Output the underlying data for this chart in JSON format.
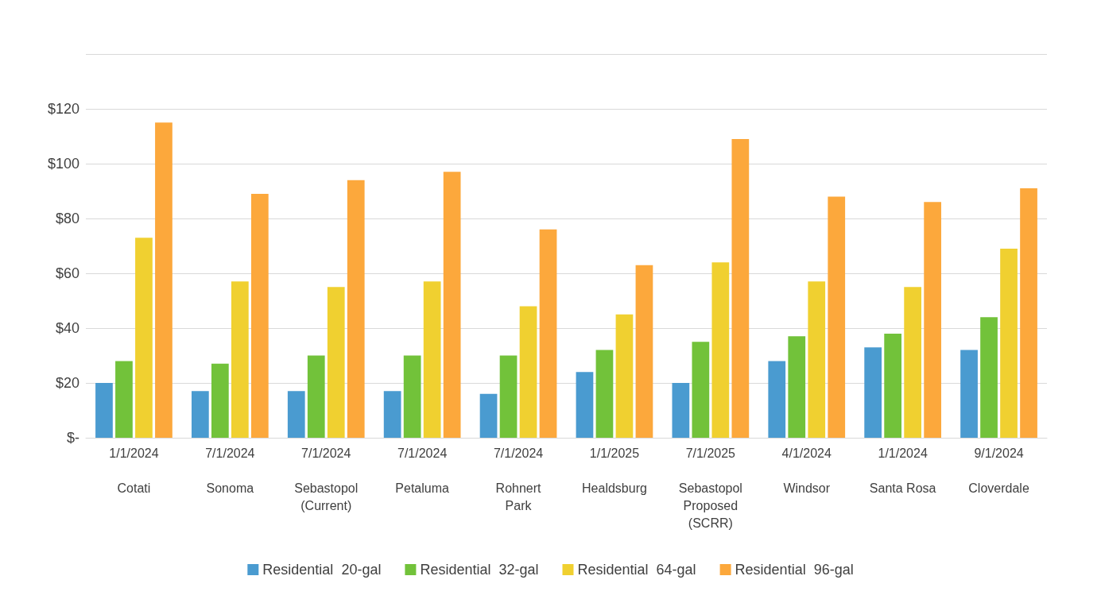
{
  "chart_data": {
    "type": "bar",
    "categories": [
      "1/1/2024\n\nCotati",
      "7/1/2024\n\nSonoma",
      "7/1/2024\n\nSebastopol\n(Current)",
      "7/1/2024\n\nPetaluma",
      "7/1/2024\n\nRohnert\nPark",
      "1/1/2025\n\nHealdsburg",
      "7/1/2025\n\nSebastopol\nProposed\n(SCRR)",
      "4/1/2024\n\nWindsor",
      "1/1/2024\n\nSanta Rosa",
      "9/1/2024\n\nCloverdale"
    ],
    "series": [
      {
        "name": "Residential  20-gal",
        "color": "#4a9bd0",
        "values": [
          20,
          17,
          17,
          17,
          16,
          24,
          20,
          28,
          33,
          32
        ]
      },
      {
        "name": "Residential  32-gal",
        "color": "#72c23a",
        "values": [
          28,
          27,
          30,
          30,
          30,
          32,
          35,
          37,
          38,
          44
        ]
      },
      {
        "name": "Residential  64-gal",
        "color": "#f0d030",
        "values": [
          73,
          57,
          55,
          57,
          48,
          45,
          64,
          57,
          55,
          69
        ]
      },
      {
        "name": "Residential  96-gal",
        "color": "#fca83c",
        "values": [
          115,
          89,
          94,
          97,
          76,
          63,
          109,
          88,
          86,
          91
        ]
      }
    ],
    "ylim": [
      0,
      140
    ],
    "yticks": [
      {
        "value": 0,
        "label": "$-"
      },
      {
        "value": 20,
        "label": "$20"
      },
      {
        "value": 40,
        "label": "$40"
      },
      {
        "value": 60,
        "label": "$60"
      },
      {
        "value": 80,
        "label": "$80"
      },
      {
        "value": 100,
        "label": "$100"
      },
      {
        "value": 120,
        "label": "$120"
      },
      {
        "value": 140,
        "label": null
      }
    ],
    "grid": true,
    "legend": "bottom"
  }
}
